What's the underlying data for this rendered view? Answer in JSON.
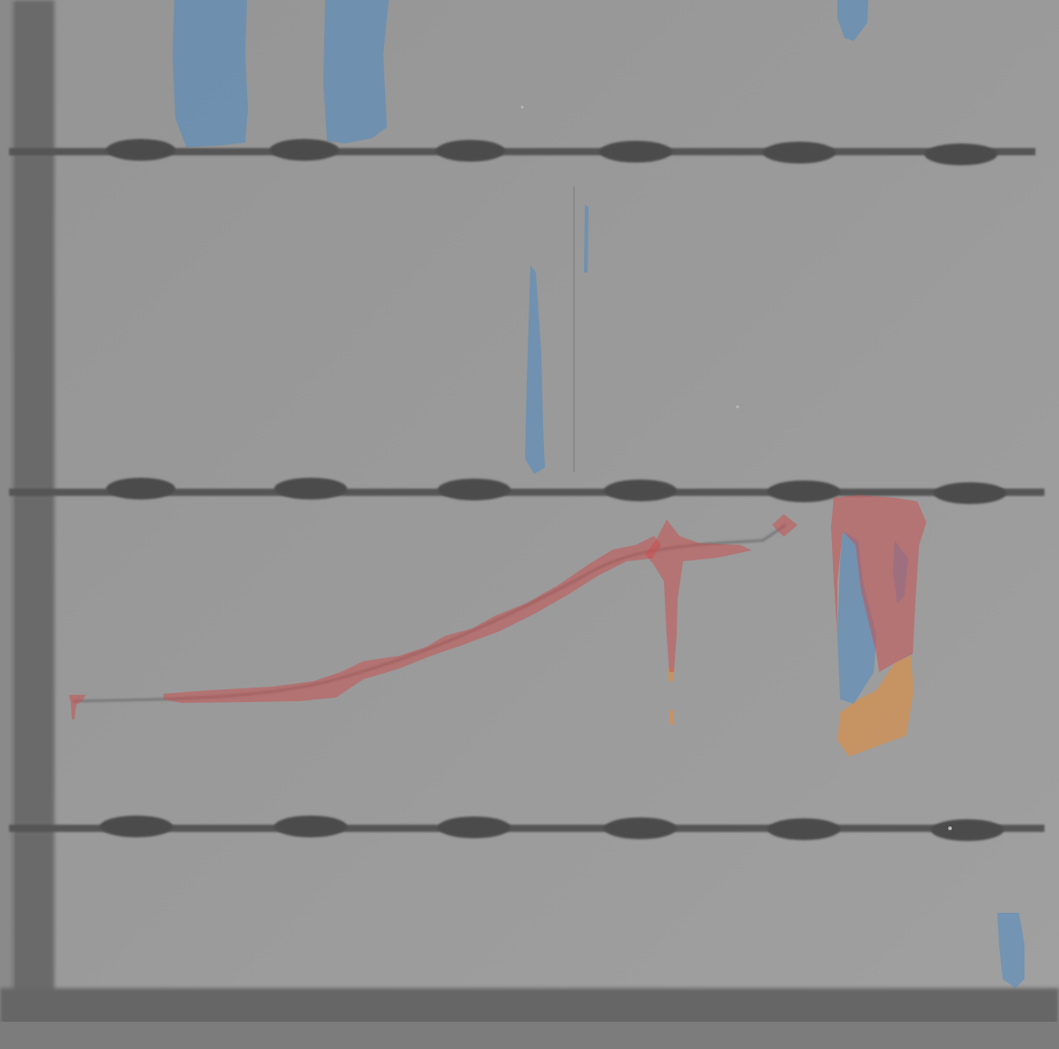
{
  "image": {
    "kind": "grayscale inspection image with colored segmentation overlay",
    "background_color": "#9a9a9a",
    "frame_color": "#6a6a6a",
    "busbar_color": "#4e4e4e",
    "overlay_opacity": 0.55
  },
  "overlay_classes": [
    {
      "name": "crack",
      "color": "#cc4b4b"
    },
    {
      "name": "finger-interruption",
      "color": "#3f88c9"
    },
    {
      "name": "dark-area",
      "color": "#f08a2a"
    }
  ],
  "grid": {
    "busbar_count": 3,
    "solder_pads_per_busbar": 6
  }
}
